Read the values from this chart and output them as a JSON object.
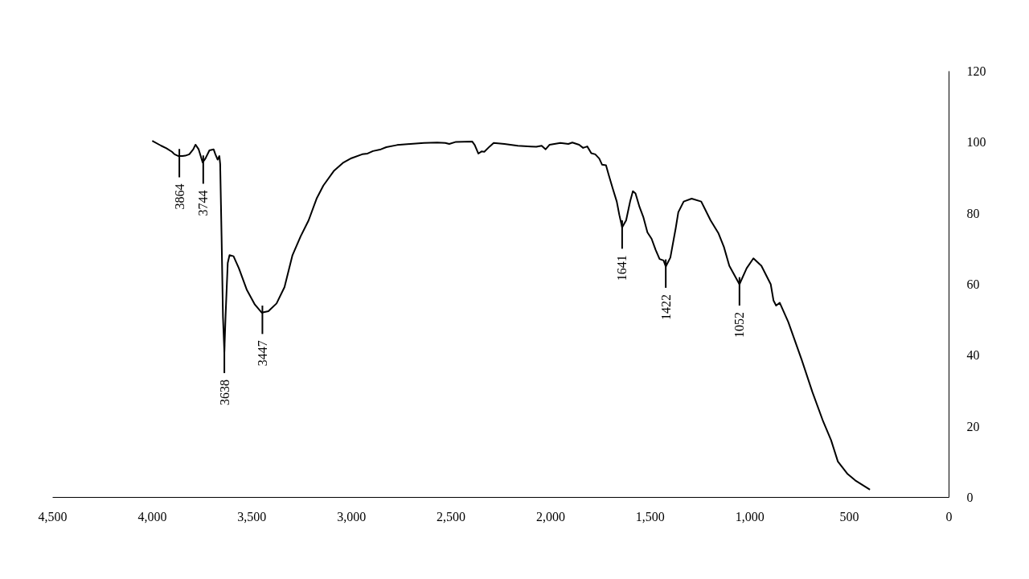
{
  "chart_data": {
    "type": "line",
    "x": [
      4000,
      3955,
      3929,
      3901,
      3888,
      3868,
      3848,
      3834,
      3814,
      3794,
      3783,
      3767,
      3747,
      3733,
      3713,
      3692,
      3683,
      3672,
      3663,
      3659,
      3652,
      3645,
      3638,
      3632,
      3621,
      3612,
      3592,
      3565,
      3525,
      3485,
      3450,
      3417,
      3376,
      3336,
      3296,
      3255,
      3215,
      3175,
      3141,
      3087,
      3040,
      3000,
      2946,
      2919,
      2892,
      2852,
      2825,
      2771,
      2704,
      2636,
      2569,
      2529,
      2509,
      2475,
      2394,
      2381,
      2363,
      2347,
      2333,
      2306,
      2286,
      2232,
      2165,
      2098,
      2072,
      2045,
      2025,
      2005,
      1951,
      1911,
      1891,
      1857,
      1837,
      1816,
      1796,
      1776,
      1756,
      1742,
      1722,
      1709,
      1689,
      1668,
      1655,
      1641,
      1621,
      1601,
      1587,
      1574,
      1554,
      1534,
      1514,
      1493,
      1473,
      1453,
      1433,
      1422,
      1399,
      1372,
      1359,
      1332,
      1292,
      1244,
      1197,
      1157,
      1130,
      1103,
      1052,
      1016,
      982,
      942,
      895,
      881,
      868,
      850,
      807,
      740,
      686,
      632,
      592,
      558,
      511,
      471,
      397
    ],
    "series": [
      {
        "color": "#000000",
        "values": [
          100.4,
          99.0,
          98.3,
          97.3,
          96.6,
          96.1,
          96.1,
          96.2,
          96.6,
          98.0,
          99.3,
          98.0,
          94.3,
          95.4,
          97.7,
          98.0,
          96.6,
          95.1,
          96.1,
          93.9,
          73.6,
          50.9,
          41.0,
          51.0,
          66.0,
          68.2,
          67.9,
          64.5,
          58.4,
          54.3,
          52.0,
          52.4,
          54.6,
          59.2,
          68.2,
          73.5,
          78.0,
          84.1,
          87.8,
          92.0,
          94.3,
          95.5,
          96.6,
          96.8,
          97.5,
          98.0,
          98.6,
          99.2,
          99.5,
          99.8,
          99.9,
          99.8,
          99.5,
          100.1,
          100.2,
          99.2,
          96.8,
          97.4,
          97.3,
          98.8,
          99.8,
          99.5,
          99.0,
          98.8,
          98.7,
          99.0,
          98.0,
          99.3,
          99.8,
          99.5,
          99.9,
          99.3,
          98.4,
          98.8,
          96.9,
          96.6,
          95.4,
          93.7,
          93.5,
          90.9,
          87.1,
          83.3,
          79.5,
          76.0,
          78.0,
          83.3,
          86.2,
          85.6,
          81.8,
          78.8,
          74.6,
          72.8,
          69.7,
          67.1,
          66.7,
          65.0,
          67.5,
          75.8,
          80.3,
          83.3,
          84.1,
          83.3,
          78.0,
          74.3,
          70.5,
          65.2,
          60.0,
          64.5,
          67.3,
          65.2,
          60.0,
          55.4,
          54.0,
          54.8,
          49.4,
          38.8,
          29.7,
          21.4,
          16.1,
          10.1,
          6.7,
          4.8,
          2.2
        ]
      }
    ],
    "xlim": [
      4500,
      0
    ],
    "ylim": [
      0,
      120
    ],
    "xticks": [
      {
        "value": 4500,
        "label": "4,500"
      },
      {
        "value": 4000,
        "label": "4,000"
      },
      {
        "value": 3500,
        "label": "3,500"
      },
      {
        "value": 3000,
        "label": "3,000"
      },
      {
        "value": 2500,
        "label": "2,500"
      },
      {
        "value": 2000,
        "label": "2,000"
      },
      {
        "value": 1500,
        "label": "1,500"
      },
      {
        "value": 1000,
        "label": "1,000"
      },
      500,
      0
    ],
    "yticks": [
      0,
      20,
      40,
      60,
      80,
      100,
      120
    ],
    "annotations": [
      {
        "text": "3864",
        "x": 3864,
        "y": 96.1
      },
      {
        "text": "3744",
        "x": 3744,
        "y": 94.3
      },
      {
        "text": "3638",
        "x": 3638,
        "y": 41.0
      },
      {
        "text": "3447",
        "x": 3447,
        "y": 52.0
      },
      {
        "text": "1641",
        "x": 1641,
        "y": 76.0
      },
      {
        "text": "1422",
        "x": 1422,
        "y": 65.0
      },
      {
        "text": "1052",
        "x": 1052,
        "y": 60.0
      }
    ]
  }
}
